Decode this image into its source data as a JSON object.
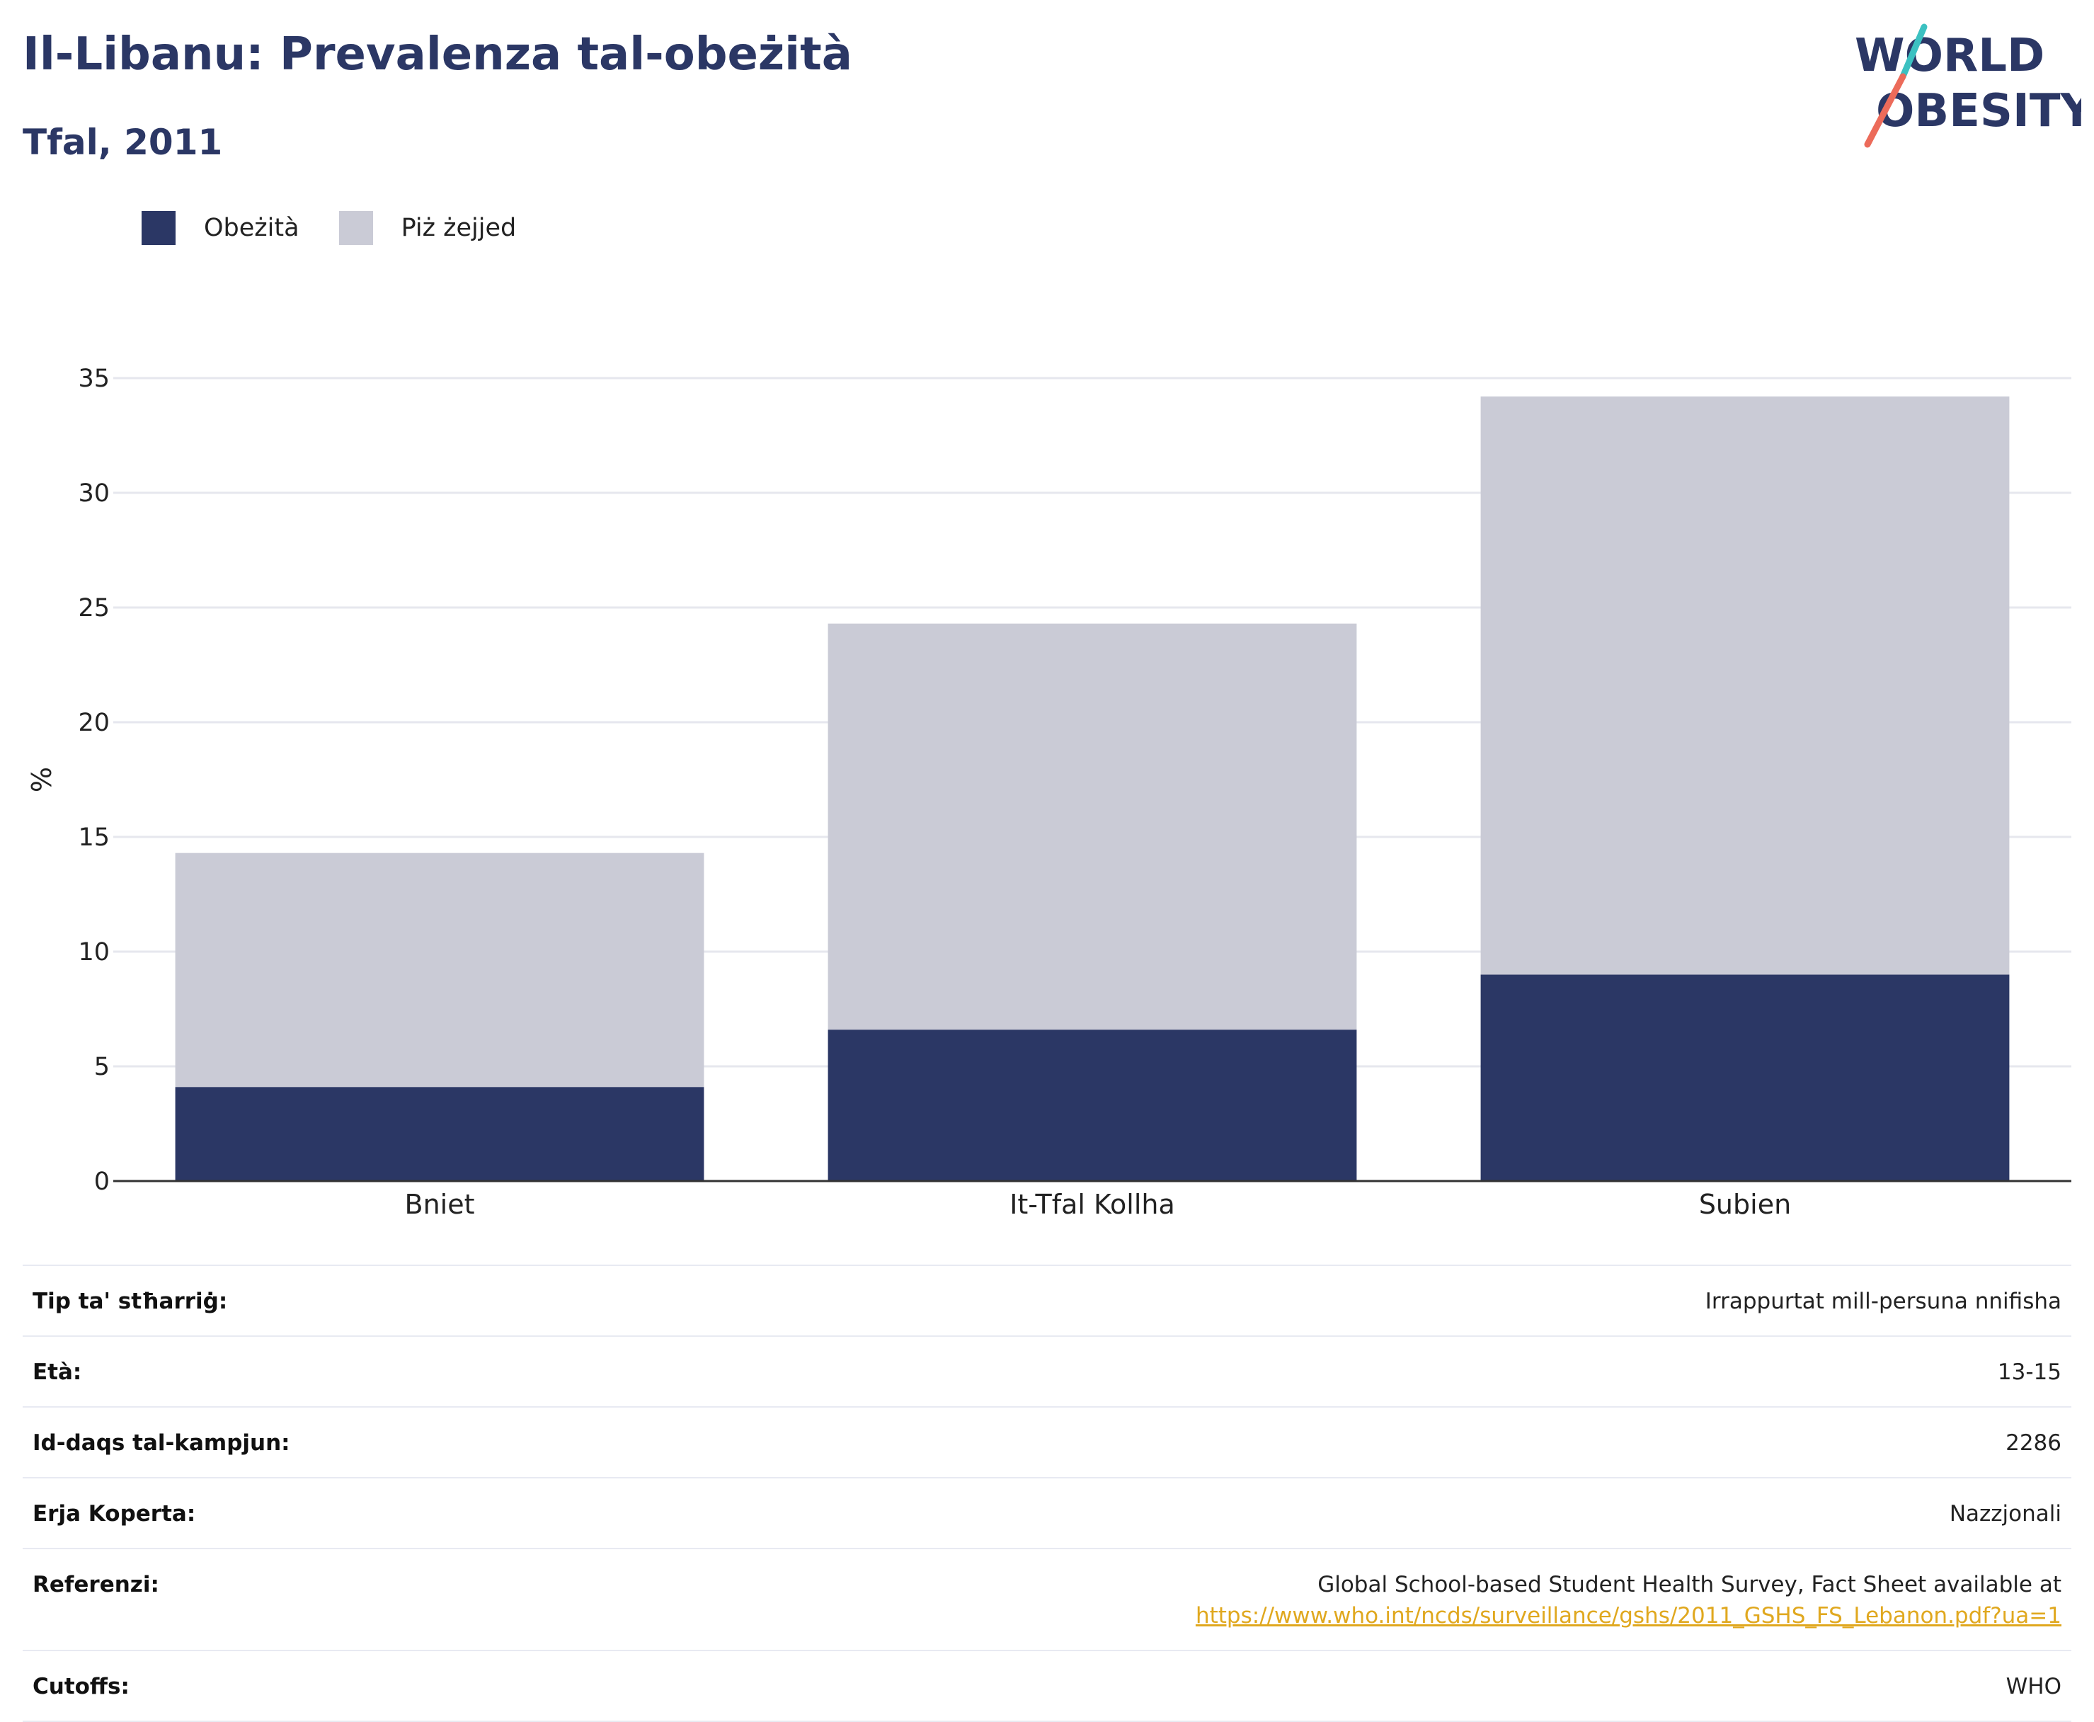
{
  "header": {
    "title": "Il-Libanu: Prevalenza tal-obeżità",
    "subtitle": "Tfal, 2011",
    "logo_line1": "WORLD",
    "logo_line2": "OBESITY"
  },
  "legend": [
    {
      "label": "Obeżità",
      "color": "#2b3765"
    },
    {
      "label": "Piż żejjed",
      "color": "#cacbd6"
    }
  ],
  "chart_data": {
    "type": "bar",
    "stacked": true,
    "categories": [
      "Bniet",
      "It-Tfal Kollha",
      "Subien"
    ],
    "series": [
      {
        "name": "Obeżità",
        "values": [
          4.1,
          6.6,
          9.0
        ],
        "color": "#2b3765"
      },
      {
        "name": "Piż żejjed",
        "values": [
          10.2,
          17.7,
          25.2
        ],
        "color": "#cacbd6"
      }
    ],
    "ylabel": "%",
    "ylim": [
      0,
      35
    ],
    "yticks": [
      0,
      5,
      10,
      15,
      20,
      25,
      30,
      35
    ],
    "grid": true,
    "legend_position": "top-left"
  },
  "info": {
    "rows": [
      {
        "label": "Tip ta' stħarriġ:",
        "value": "Irrappurtat mill-persuna nnifisha"
      },
      {
        "label": "Età:",
        "value": "13-15"
      },
      {
        "label": "Id-daqs tal-kampjun:",
        "value": "2286"
      },
      {
        "label": "Erja Koperta:",
        "value": "Nazzjonali"
      }
    ],
    "reference_label": "Referenzi:",
    "reference_text": "Global School-based Student Health Survey, Fact Sheet available at",
    "reference_link": "https://www.who.int/ncds/surveillance/gshs/2011_GSHS_FS_Lebanon.pdf?ua=1",
    "cutoffs_label": "Cutoffs:",
    "cutoffs_value": "WHO"
  }
}
